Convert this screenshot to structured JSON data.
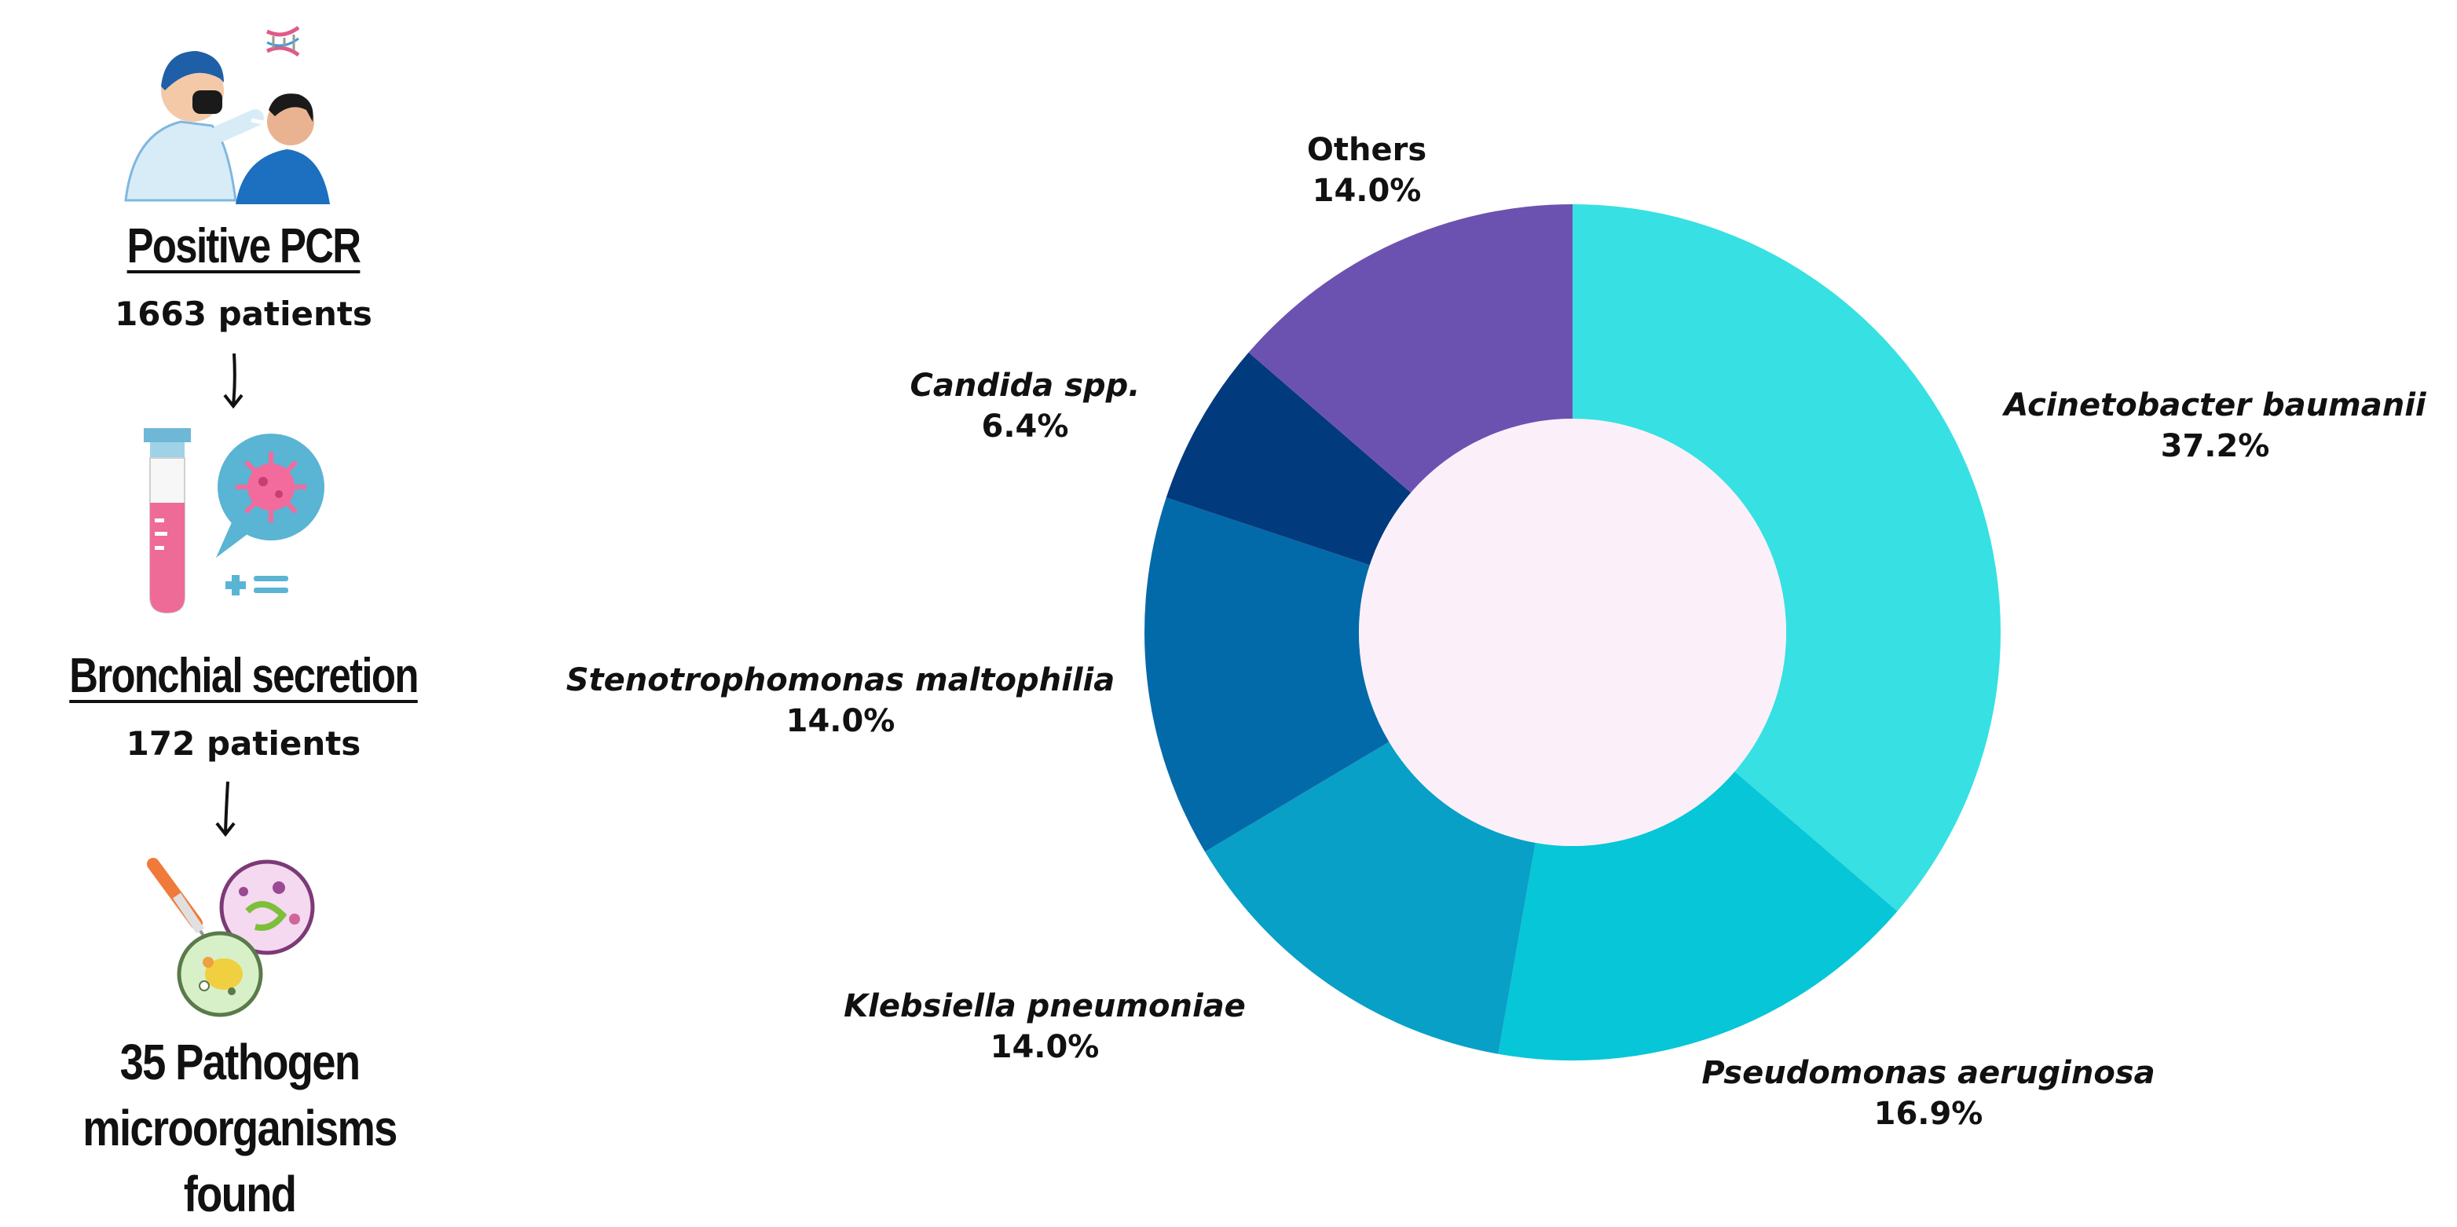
{
  "flow": {
    "steps": [
      {
        "title": "Positive PCR",
        "count": "1663 patients",
        "icon": "pcr-swab-test-icon"
      },
      {
        "title": "Bronchial secretion",
        "count": "172 patients",
        "icon": "test-tube-virus-icon"
      }
    ],
    "result": {
      "line1": "35 Pathogen",
      "line2": "microorganisms found",
      "icon": "petri-dish-microbes-icon"
    }
  },
  "chart_data": {
    "type": "pie",
    "donut": true,
    "start_angle_deg": 0,
    "direction": "clockwise",
    "slices": [
      {
        "label": "Acinetobacter baumanii",
        "value": 37.2,
        "value_label": "37.2%",
        "color": "#37E0E2"
      },
      {
        "label": "Pseudomonas aeruginosa",
        "value": 16.9,
        "value_label": "16.9%",
        "color": "#06C6D8"
      },
      {
        "label": "Klebsiella pneumoniae",
        "value": 14.0,
        "value_label": "14.0%",
        "color": "#08A0C6"
      },
      {
        "label": "Stenotrophomonas maltophilia",
        "value": 14.0,
        "value_label": "14.0%",
        "color": "#036AAA"
      },
      {
        "label": "Candida spp.",
        "value": 6.4,
        "value_label": "6.4%",
        "color": "#023A7E"
      },
      {
        "label": "Others",
        "value": 14.0,
        "value_label": "14.0%",
        "color": "#6C52B0"
      }
    ],
    "center_color": "#FBF0FA"
  }
}
